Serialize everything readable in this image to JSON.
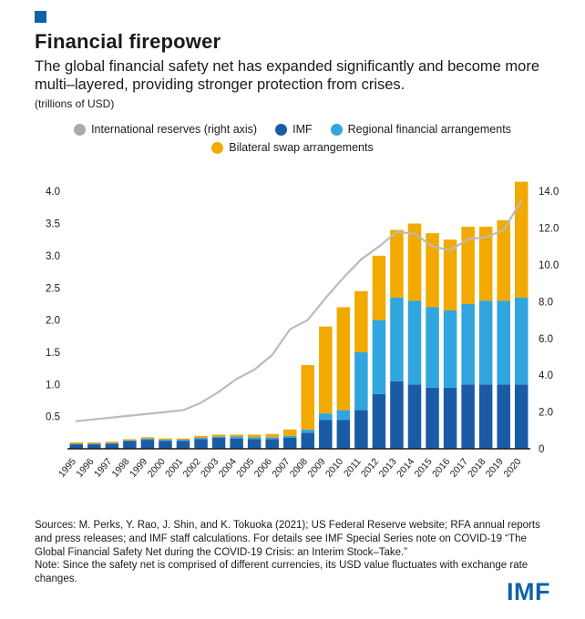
{
  "meta": {
    "brand_blue": "#0f62a7",
    "text_color": "#1a1a1a"
  },
  "header": {
    "title": "Financial firepower",
    "subtitle": "The global financial safety net has expanded significantly and become more multi–layered, providing stronger protection from crises.",
    "unit": "(trillions of USD)"
  },
  "legend": {
    "items": [
      {
        "label": "International reserves (right axis)",
        "color": "#a8aaad"
      },
      {
        "label": "IMF",
        "color": "#1a5ba6"
      },
      {
        "label": "Regional financial arrangements",
        "color": "#31a5dd"
      },
      {
        "label": "Bilateral swap arrangements",
        "color": "#f2a900"
      }
    ]
  },
  "chart_data": {
    "type": "bar",
    "stacked": true,
    "title": "Financial firepower",
    "xlabel": "",
    "ylabel_left": "trillions of USD",
    "ylabel_right": "trillions of USD (international reserves)",
    "grid": false,
    "legend_position": "top",
    "categories": [
      "1995",
      "1996",
      "1997",
      "1998",
      "1999",
      "2000",
      "2001",
      "2002",
      "2003",
      "2004",
      "2005",
      "2006",
      "2007",
      "2008",
      "2009",
      "2010",
      "2011",
      "2012",
      "2013",
      "2014",
      "2015",
      "2016",
      "2017",
      "2018",
      "2019",
      "2020"
    ],
    "series": [
      {
        "name": "IMF",
        "type": "bar",
        "axis": "left",
        "color": "#1a5ba6",
        "values": [
          0.07,
          0.07,
          0.08,
          0.12,
          0.14,
          0.12,
          0.12,
          0.15,
          0.17,
          0.16,
          0.15,
          0.15,
          0.17,
          0.25,
          0.45,
          0.45,
          0.6,
          0.85,
          1.05,
          1.0,
          0.95,
          0.95,
          1.0,
          1.0,
          1.0,
          1.0
        ]
      },
      {
        "name": "Regional financial arrangements",
        "type": "bar",
        "axis": "left",
        "color": "#31a5dd",
        "values": [
          0.01,
          0.01,
          0.01,
          0.01,
          0.02,
          0.02,
          0.02,
          0.02,
          0.02,
          0.03,
          0.03,
          0.03,
          0.03,
          0.05,
          0.1,
          0.15,
          0.9,
          1.15,
          1.3,
          1.3,
          1.25,
          1.2,
          1.25,
          1.3,
          1.3,
          1.35
        ]
      },
      {
        "name": "Bilateral swap arrangements",
        "type": "bar",
        "axis": "left",
        "color": "#f2a900",
        "values": [
          0.02,
          0.02,
          0.02,
          0.02,
          0.02,
          0.02,
          0.02,
          0.03,
          0.03,
          0.03,
          0.04,
          0.05,
          0.1,
          1.0,
          1.35,
          1.6,
          0.95,
          1.0,
          1.05,
          1.2,
          1.15,
          1.1,
          1.2,
          1.15,
          1.25,
          1.8
        ]
      },
      {
        "name": "International reserves (right axis)",
        "type": "line",
        "axis": "right",
        "color": "#b9bbbd",
        "values": [
          1.5,
          1.6,
          1.7,
          1.8,
          1.9,
          2.0,
          2.1,
          2.5,
          3.1,
          3.8,
          4.3,
          5.1,
          6.5,
          7.0,
          8.2,
          9.3,
          10.3,
          11.0,
          11.8,
          11.7,
          11.0,
          10.8,
          11.4,
          11.5,
          11.9,
          13.5
        ]
      }
    ],
    "left_axis": {
      "ticks": [
        0.5,
        1.0,
        1.5,
        2.0,
        2.5,
        3.0,
        3.5,
        4.0
      ],
      "min": 0,
      "max": 4.3,
      "tick_format": "0.1f"
    },
    "right_axis": {
      "ticks": [
        0,
        2.0,
        4.0,
        6.0,
        8.0,
        10.0,
        12.0,
        14.0
      ],
      "min": 0,
      "max": 15.05,
      "tick_format": "0.1f"
    }
  },
  "footer": {
    "sources": "Sources: M. Perks, Y. Rao, J. Shin, and K. Tokuoka (2021); US Federal Reserve website; RFA annual reports and press releases; and IMF staff calculations. For details see IMF Special Series note on COVID-19 “The Global Financial Safety Net during the COVID-19 Crisis: an Interim Stock–Take.”",
    "note": "Note: Since the safety net is comprised of different currencies, its USD value fluctuates with exchange rate changes.",
    "logo": "IMF"
  }
}
